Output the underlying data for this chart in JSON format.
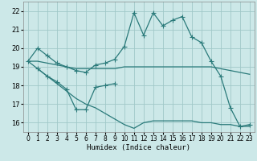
{
  "xlabel": "Humidex (Indice chaleur)",
  "background_color": "#cce8e8",
  "grid_color": "#a0c8c8",
  "line_color": "#2a7a7a",
  "xlim": [
    -0.5,
    23.5
  ],
  "ylim": [
    15.5,
    22.5
  ],
  "yticks": [
    16,
    17,
    18,
    19,
    20,
    21,
    22
  ],
  "xticks": [
    0,
    1,
    2,
    3,
    4,
    5,
    6,
    7,
    8,
    9,
    10,
    11,
    12,
    13,
    14,
    15,
    16,
    17,
    18,
    19,
    20,
    21,
    22,
    23
  ],
  "s1x": [
    0,
    1,
    2,
    3,
    4,
    5,
    6,
    7,
    8,
    9,
    10,
    11,
    12,
    13,
    14,
    15,
    16,
    17,
    18,
    19,
    20,
    21,
    22,
    23
  ],
  "s1y": [
    19.3,
    20.0,
    19.6,
    19.2,
    19.0,
    18.8,
    18.7,
    19.1,
    19.2,
    19.4,
    20.1,
    21.9,
    20.7,
    21.9,
    21.2,
    21.5,
    21.7,
    20.6,
    20.3,
    19.3,
    18.5,
    16.8,
    15.8,
    15.9
  ],
  "s2x": [
    0,
    1,
    2,
    3,
    4,
    5,
    6,
    7,
    8,
    9,
    10,
    11,
    12,
    13,
    14,
    15,
    16,
    17,
    18,
    19,
    20,
    21,
    22,
    23
  ],
  "s2y": [
    19.3,
    19.3,
    19.2,
    19.1,
    19.0,
    18.9,
    18.9,
    18.9,
    18.9,
    18.9,
    19.0,
    19.0,
    19.0,
    19.0,
    19.0,
    19.0,
    19.0,
    19.0,
    19.0,
    19.0,
    18.9,
    18.8,
    18.7,
    18.6
  ],
  "s3x": [
    1,
    2,
    3,
    4,
    5,
    6,
    7,
    8,
    9
  ],
  "s3y": [
    18.9,
    18.5,
    18.2,
    17.8,
    16.7,
    16.7,
    17.9,
    18.0,
    18.1
  ],
  "s4x": [
    0,
    1,
    2,
    3,
    4,
    5,
    6,
    7,
    8,
    9,
    10,
    11,
    12,
    13,
    14,
    15,
    16,
    17,
    18,
    19,
    20,
    21,
    22,
    23
  ],
  "s4y": [
    19.3,
    18.9,
    18.5,
    18.1,
    17.7,
    17.3,
    17.0,
    16.8,
    16.5,
    16.2,
    15.9,
    15.7,
    16.0,
    16.1,
    16.1,
    16.1,
    16.1,
    16.1,
    16.0,
    16.0,
    15.9,
    15.9,
    15.8,
    15.8
  ]
}
